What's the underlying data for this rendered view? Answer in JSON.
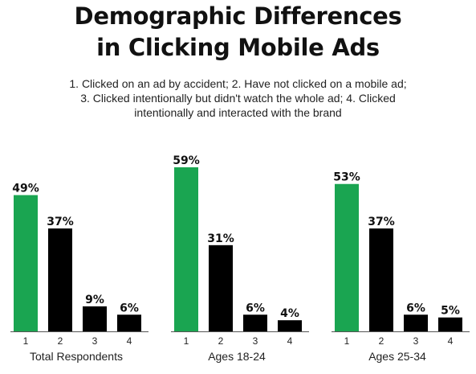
{
  "title_line1": "Demographic Differences",
  "title_line2": "in Clicking Mobile Ads",
  "subtitle_lines": [
    "1. Clicked on an ad by accident; 2. Have not clicked on a mobile ad;",
    "3. Clicked intentionally but didn't watch the whole ad; 4. Clicked",
    "intentionally and interacted with the brand"
  ],
  "colors": {
    "highlight": "#1aa551",
    "default": "#000000",
    "axis": "#555555"
  },
  "chart_data": [
    {
      "type": "bar",
      "xlabel": "Total Respondents",
      "categories": [
        "1",
        "2",
        "3",
        "4"
      ],
      "values": [
        49,
        37,
        9,
        6
      ],
      "value_labels": [
        "49%",
        "37%",
        "9%",
        "6%"
      ],
      "ylim": [
        0,
        60
      ]
    },
    {
      "type": "bar",
      "xlabel": "Ages 18-24",
      "categories": [
        "1",
        "2",
        "3",
        "4"
      ],
      "values": [
        59,
        31,
        6,
        4
      ],
      "value_labels": [
        "59%",
        "31%",
        "6%",
        "4%"
      ],
      "ylim": [
        0,
        60
      ]
    },
    {
      "type": "bar",
      "xlabel": "Ages 25-34",
      "categories": [
        "1",
        "2",
        "3",
        "4"
      ],
      "values": [
        53,
        37,
        6,
        5
      ],
      "value_labels": [
        "53%",
        "37%",
        "6%",
        "5%"
      ],
      "ylim": [
        0,
        60
      ]
    }
  ]
}
